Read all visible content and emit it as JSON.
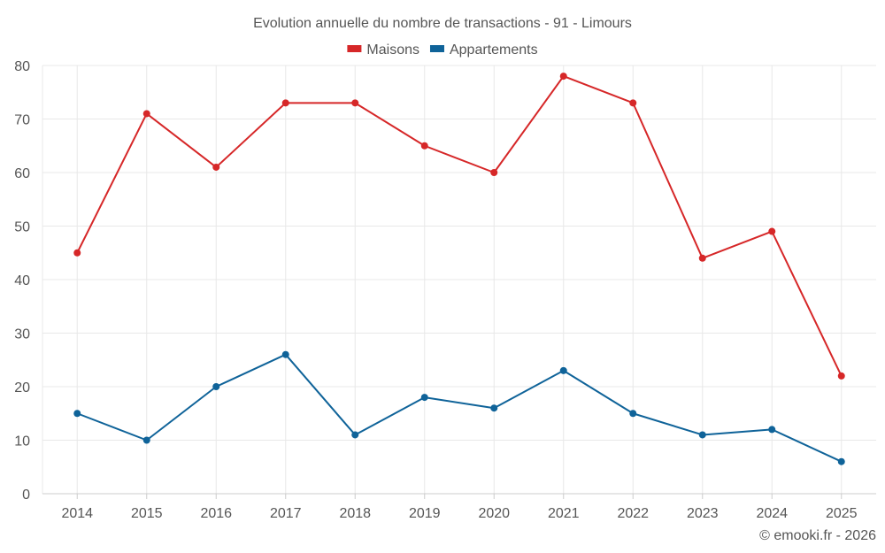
{
  "chart_data": {
    "type": "line",
    "title": "Evolution annuelle du nombre de transactions - 91 - Limours",
    "categories": [
      "2014",
      "2015",
      "2016",
      "2017",
      "2018",
      "2019",
      "2020",
      "2021",
      "2022",
      "2023",
      "2024",
      "2025"
    ],
    "series": [
      {
        "name": "Maisons",
        "color": "#d62728",
        "values": [
          45,
          71,
          61,
          73,
          73,
          65,
          60,
          78,
          73,
          44,
          49,
          22
        ]
      },
      {
        "name": "Appartements",
        "color": "#0f6399",
        "values": [
          15,
          10,
          20,
          26,
          11,
          18,
          16,
          23,
          15,
          11,
          12,
          6
        ]
      }
    ],
    "ylim": [
      0,
      80
    ],
    "yticks": [
      0,
      10,
      20,
      30,
      40,
      50,
      60,
      70,
      80
    ],
    "xlabel": "",
    "ylabel": "",
    "grid": true,
    "legend_position": "top-center"
  },
  "credit": "© emooki.fr - 2026"
}
